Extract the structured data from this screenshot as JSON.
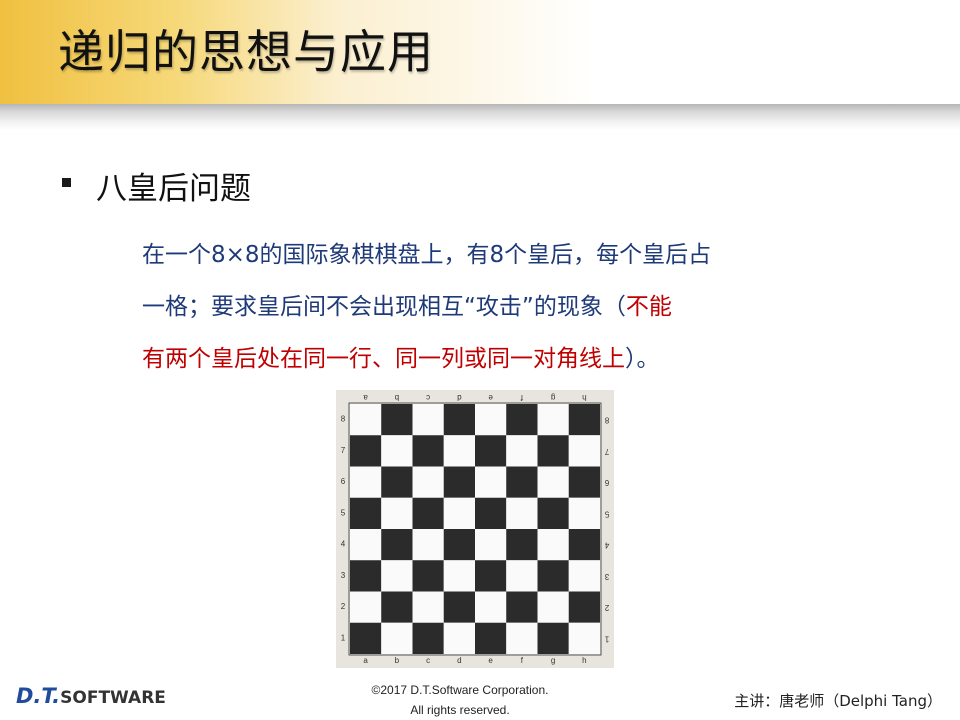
{
  "slide": {
    "title": "递归的思想与应用",
    "bullet": "八皇后问题",
    "paragraph": {
      "line1": "在一个8×8的国际象棋棋盘上，有8个皇后，每个皇后占",
      "line2_blue": "一格；要求皇后间不会出现相互“攻击”的现象（",
      "line2_red": "不能",
      "line3_red": "有两个皇后处在同一行、同一列或同一对角线上",
      "line3_blue": "）。"
    },
    "board": {
      "files": [
        "a",
        "b",
        "c",
        "d",
        "e",
        "f",
        "g",
        "h"
      ],
      "ranks": [
        "8",
        "7",
        "6",
        "5",
        "4",
        "3",
        "2",
        "1"
      ],
      "dark_color": "#2b2b2b",
      "light_color": "#fafafa"
    }
  },
  "footer": {
    "logo_dt": "D.T.",
    "logo_software": "SOFTWARE",
    "copyright_line1": "©2017 D.T.Software Corporation.",
    "copyright_line2": "All rights reserved.",
    "presenter": "主讲：唐老师（Delphi Tang）"
  },
  "colors": {
    "header_gold": "#f0c040",
    "text_blue": "#1f3a78",
    "text_red": "#c00000"
  }
}
